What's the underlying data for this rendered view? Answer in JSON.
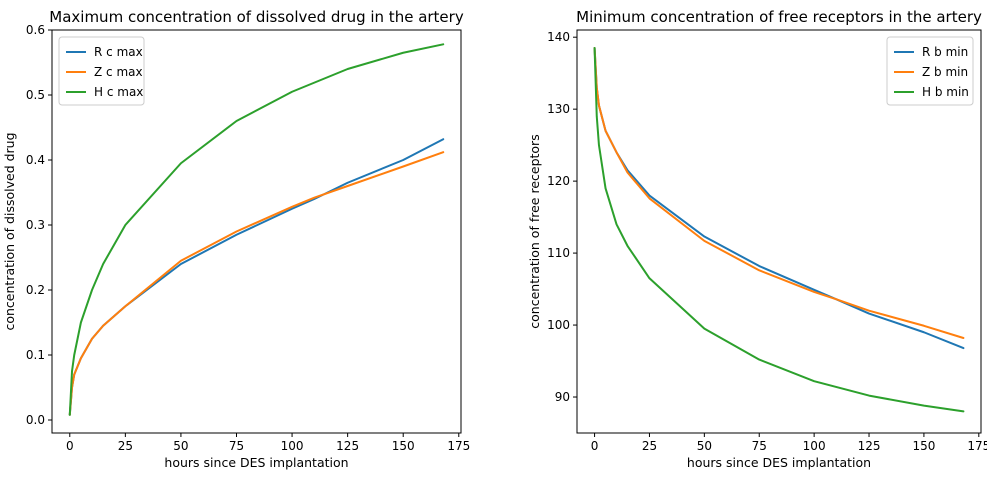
{
  "chart_data": [
    {
      "type": "line",
      "title": "Maximum concentration of dissolved drug in the artery",
      "xlabel": "hours since DES implantation",
      "ylabel": "concentration of dissolved drug",
      "xlim": [
        -8,
        176
      ],
      "ylim": [
        -0.02,
        0.6
      ],
      "xticks": [
        0,
        25,
        50,
        75,
        100,
        125,
        150,
        175
      ],
      "yticks": [
        0.0,
        0.1,
        0.2,
        0.3,
        0.4,
        0.5,
        0.6
      ],
      "xtick_labels": [
        "0",
        "25",
        "50",
        "75",
        "100",
        "125",
        "150",
        "175"
      ],
      "ytick_labels": [
        "0.0",
        "0.1",
        "0.2",
        "0.3",
        "0.4",
        "0.5",
        "0.6"
      ],
      "grid": false,
      "legend_position": "top-left",
      "series": [
        {
          "name": "R c max",
          "color": "#1f77b4",
          "x": [
            0,
            1,
            2,
            5,
            10,
            15,
            25,
            50,
            75,
            100,
            110,
            125,
            150,
            168
          ],
          "y": [
            0.008,
            0.05,
            0.07,
            0.095,
            0.125,
            0.145,
            0.175,
            0.24,
            0.285,
            0.325,
            0.34,
            0.365,
            0.4,
            0.432
          ]
        },
        {
          "name": "Z c max",
          "color": "#ff7f0e",
          "x": [
            0,
            1,
            2,
            5,
            10,
            15,
            25,
            50,
            75,
            100,
            110,
            125,
            150,
            168
          ],
          "y": [
            0.008,
            0.05,
            0.07,
            0.095,
            0.125,
            0.145,
            0.175,
            0.245,
            0.29,
            0.328,
            0.342,
            0.36,
            0.39,
            0.412
          ]
        },
        {
          "name": "H c max",
          "color": "#2ca02c",
          "x": [
            0,
            1,
            2,
            5,
            10,
            15,
            25,
            50,
            75,
            100,
            125,
            150,
            168
          ],
          "y": [
            0.008,
            0.075,
            0.1,
            0.15,
            0.2,
            0.24,
            0.3,
            0.395,
            0.46,
            0.505,
            0.54,
            0.565,
            0.578
          ]
        }
      ]
    },
    {
      "type": "line",
      "title": "Minimum concentration of free receptors in the artery",
      "xlabel": "hours since DES implantation",
      "ylabel": "concentration of free receptors",
      "xlim": [
        -8,
        176
      ],
      "ylim": [
        85,
        141
      ],
      "xticks": [
        0,
        25,
        50,
        75,
        100,
        125,
        150,
        175
      ],
      "yticks": [
        90,
        100,
        110,
        120,
        130,
        140
      ],
      "xtick_labels": [
        "0",
        "25",
        "50",
        "75",
        "100",
        "125",
        "150",
        "175"
      ],
      "ytick_labels": [
        "90",
        "100",
        "110",
        "120",
        "130",
        "140"
      ],
      "grid": false,
      "legend_position": "top-right",
      "series": [
        {
          "name": "R b min",
          "color": "#1f77b4",
          "x": [
            0,
            1,
            2,
            5,
            10,
            15,
            25,
            50,
            75,
            100,
            110,
            125,
            150,
            168
          ],
          "y": [
            138.5,
            133,
            130.5,
            127,
            124,
            121.5,
            118,
            112.3,
            108.2,
            104.9,
            103.6,
            101.6,
            99.0,
            96.8
          ]
        },
        {
          "name": "Z b min",
          "color": "#ff7f0e",
          "x": [
            0,
            1,
            2,
            5,
            10,
            15,
            25,
            50,
            75,
            100,
            110,
            125,
            150,
            168
          ],
          "y": [
            138.5,
            133,
            130.5,
            127,
            124,
            121.2,
            117.6,
            111.7,
            107.6,
            104.6,
            103.6,
            102.0,
            99.9,
            98.2
          ]
        },
        {
          "name": "H b min",
          "color": "#2ca02c",
          "x": [
            0,
            1,
            2,
            5,
            10,
            15,
            25,
            50,
            75,
            100,
            125,
            150,
            168
          ],
          "y": [
            138.5,
            129,
            125,
            119,
            114,
            111,
            106.5,
            99.5,
            95.2,
            92.2,
            90.2,
            88.8,
            88.0
          ]
        }
      ]
    }
  ]
}
